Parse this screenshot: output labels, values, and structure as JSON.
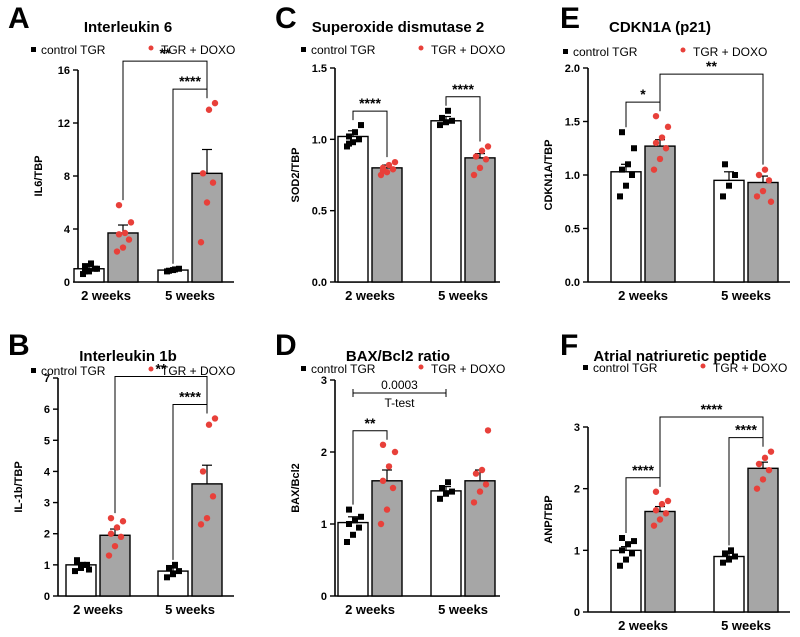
{
  "chart_data": [
    {
      "panel": "A",
      "type": "bar",
      "title": "Interleukin 6",
      "ylabel": "IL6/TBP",
      "ylim": [
        0,
        16
      ],
      "yticks": [
        0,
        4,
        8,
        12,
        16
      ],
      "tick_labels": [
        "0",
        "4",
        "8",
        "12",
        "16"
      ],
      "categories": [
        "2 weeks",
        "5 weeks"
      ],
      "legend": [
        "control TGR",
        "TGR + DOXO"
      ],
      "series": [
        {
          "name": "control TGR",
          "values": [
            1.0,
            0.9
          ],
          "errors": [
            0.15,
            0.1
          ],
          "points": [
            [
              0.6,
              0.8,
              1.0,
              1.2,
              1.4,
              1.0,
              0.8
            ],
            [
              0.8,
              0.9,
              1.0,
              0.85,
              0.95
            ]
          ]
        },
        {
          "name": "TGR + DOXO",
          "values": [
            3.7,
            8.2
          ],
          "errors": [
            0.6,
            1.8
          ],
          "points": [
            [
              2.3,
              2.6,
              3.2,
              3.6,
              3.7,
              4.5,
              5.8
            ],
            [
              3.0,
              6.0,
              7.5,
              8.2,
              13.0,
              13.5
            ]
          ]
        }
      ],
      "brackets": [
        {
          "from": [
            1,
            "control TGR"
          ],
          "to": [
            1,
            "TGR + DOXO"
          ],
          "label": "****"
        },
        {
          "from": [
            0,
            "TGR + DOXO"
          ],
          "to": [
            1,
            "TGR + DOXO"
          ],
          "label": "**"
        }
      ]
    },
    {
      "panel": "B",
      "type": "bar",
      "title": "Interleukin 1b",
      "ylabel": "IL-1b/TBP",
      "ylim": [
        0,
        7
      ],
      "yticks": [
        0,
        1,
        2,
        3,
        4,
        5,
        6,
        7
      ],
      "tick_labels": [
        "0",
        "1",
        "2",
        "3",
        "4",
        "5",
        "6",
        "7"
      ],
      "categories": [
        "2 weeks",
        "5 weeks"
      ],
      "legend": [
        "control TGR",
        "TGR + DOXO"
      ],
      "series": [
        {
          "name": "control TGR",
          "values": [
            1.0,
            0.8
          ],
          "errors": [
            0.07,
            0.1
          ],
          "points": [
            [
              0.8,
              0.9,
              1.0,
              1.1,
              1.0,
              0.85,
              1.15
            ],
            [
              0.6,
              0.7,
              0.8,
              0.9,
              1.0
            ]
          ]
        },
        {
          "name": "TGR + DOXO",
          "values": [
            1.95,
            3.6
          ],
          "errors": [
            0.2,
            0.6
          ],
          "points": [
            [
              1.3,
              1.6,
              1.9,
              2.0,
              2.2,
              2.4,
              2.5
            ],
            [
              2.3,
              2.5,
              3.2,
              4.0,
              5.5,
              5.7
            ]
          ]
        }
      ],
      "brackets": [
        {
          "from": [
            1,
            "control TGR"
          ],
          "to": [
            1,
            "TGR + DOXO"
          ],
          "label": "****"
        },
        {
          "from": [
            0,
            "TGR + DOXO"
          ],
          "to": [
            1,
            "TGR + DOXO"
          ],
          "label": "**"
        }
      ]
    },
    {
      "panel": "C",
      "type": "bar",
      "title": "Superoxide dismutase 2",
      "ylabel": "SOD2/TBP",
      "ylim": [
        0,
        1.5
      ],
      "yticks": [
        0,
        0.5,
        1.0,
        1.5
      ],
      "tick_labels": [
        "0.0",
        "0.5",
        "1.0",
        "1.5"
      ],
      "categories": [
        "2 weeks",
        "5 weeks"
      ],
      "legend": [
        "control TGR",
        "TGR + DOXO"
      ],
      "series": [
        {
          "name": "control TGR",
          "values": [
            1.02,
            1.13
          ],
          "errors": [
            0.04,
            0.03
          ],
          "points": [
            [
              0.95,
              0.98,
              1.0,
              1.02,
              1.05,
              1.1,
              0.97
            ],
            [
              1.1,
              1.12,
              1.13,
              1.15,
              1.2
            ]
          ]
        },
        {
          "name": "TGR + DOXO",
          "values": [
            0.8,
            0.87
          ],
          "errors": [
            0.02,
            0.03
          ],
          "points": [
            [
              0.75,
              0.77,
              0.79,
              0.8,
              0.82,
              0.84,
              0.78
            ],
            [
              0.75,
              0.8,
              0.86,
              0.88,
              0.92,
              0.95
            ]
          ]
        }
      ],
      "brackets": [
        {
          "from": [
            0,
            "control TGR"
          ],
          "to": [
            0,
            "TGR + DOXO"
          ],
          "label": "****"
        },
        {
          "from": [
            1,
            "control TGR"
          ],
          "to": [
            1,
            "TGR + DOXO"
          ],
          "label": "****"
        }
      ]
    },
    {
      "panel": "D",
      "type": "bar",
      "title": "BAX/Bcl2 ratio",
      "ylabel": "BAX/Bcl2",
      "ylim": [
        0,
        3
      ],
      "yticks": [
        0,
        1,
        2,
        3
      ],
      "tick_labels": [
        "0",
        "1",
        "2",
        "3"
      ],
      "categories": [
        "2 weeks",
        "5 weeks"
      ],
      "legend": [
        "control TGR",
        "TGR + DOXO"
      ],
      "series": [
        {
          "name": "control TGR",
          "values": [
            1.02,
            1.46
          ],
          "errors": [
            0.08,
            0.06
          ],
          "points": [
            [
              0.75,
              0.85,
              0.95,
              1.0,
              1.05,
              1.1,
              1.2
            ],
            [
              1.35,
              1.42,
              1.45,
              1.5,
              1.58
            ]
          ]
        },
        {
          "name": "TGR + DOXO",
          "values": [
            1.6,
            1.6
          ],
          "errors": [
            0.15,
            0.15
          ],
          "points": [
            [
              1.0,
              1.2,
              1.5,
              1.6,
              1.8,
              2.0,
              2.1
            ],
            [
              1.3,
              1.45,
              1.55,
              1.7,
              1.75,
              2.3
            ]
          ]
        }
      ],
      "brackets": [
        {
          "from": [
            0,
            "control TGR"
          ],
          "to": [
            0,
            "TGR + DOXO"
          ],
          "label": "**"
        }
      ],
      "annotation": {
        "value_text": "0.0003",
        "test_text": "T-test"
      }
    },
    {
      "panel": "E",
      "type": "bar",
      "title": "CDKN1A (p21)",
      "ylabel": "CDKN1A/TBP",
      "ylim": [
        0,
        2.0
      ],
      "yticks": [
        0,
        0.5,
        1.0,
        1.5,
        2.0
      ],
      "tick_labels": [
        "0.0",
        "0.5",
        "1.0",
        "1.5",
        "2.0"
      ],
      "categories": [
        "2 weeks",
        "5 weeks"
      ],
      "legend": [
        "control TGR",
        "TGR + DOXO"
      ],
      "series": [
        {
          "name": "control TGR",
          "values": [
            1.03,
            0.95
          ],
          "errors": [
            0.07,
            0.08
          ],
          "points": [
            [
              0.8,
              0.9,
              1.0,
              1.05,
              1.1,
              1.25,
              1.4
            ],
            [
              0.8,
              0.9,
              1.0,
              1.1
            ]
          ]
        },
        {
          "name": "TGR + DOXO",
          "values": [
            1.27,
            0.93
          ],
          "errors": [
            0.06,
            0.06
          ],
          "points": [
            [
              1.05,
              1.15,
              1.25,
              1.3,
              1.35,
              1.45,
              1.55
            ],
            [
              0.8,
              0.85,
              0.95,
              1.0,
              1.05,
              0.75
            ]
          ]
        }
      ],
      "brackets": [
        {
          "from": [
            0,
            "control TGR"
          ],
          "to": [
            0,
            "TGR + DOXO"
          ],
          "label": "*"
        },
        {
          "from": [
            0,
            "TGR + DOXO"
          ],
          "to": [
            1,
            "TGR + DOXO"
          ],
          "label": "**"
        }
      ]
    },
    {
      "panel": "F",
      "type": "bar",
      "title": "Atrial natriuretic peptide",
      "ylabel": "ANP/TBP",
      "ylim": [
        0,
        3
      ],
      "yticks": [
        0,
        1,
        2,
        3
      ],
      "tick_labels": [
        "0",
        "1",
        "2",
        "3"
      ],
      "categories": [
        "2 weeks",
        "5 weeks"
      ],
      "legend": [
        "control TGR",
        "TGR + DOXO"
      ],
      "series": [
        {
          "name": "control TGR",
          "values": [
            1.0,
            0.9
          ],
          "errors": [
            0.06,
            0.05
          ],
          "points": [
            [
              0.75,
              0.85,
              0.95,
              1.0,
              1.1,
              1.15,
              1.2
            ],
            [
              0.8,
              0.85,
              0.9,
              0.95,
              1.0
            ]
          ]
        },
        {
          "name": "TGR + DOXO",
          "values": [
            1.63,
            2.33
          ],
          "errors": [
            0.08,
            0.1
          ],
          "points": [
            [
              1.4,
              1.5,
              1.6,
              1.65,
              1.75,
              1.8,
              1.95
            ],
            [
              2.0,
              2.15,
              2.3,
              2.4,
              2.5,
              2.6
            ]
          ]
        }
      ],
      "brackets": [
        {
          "from": [
            0,
            "control TGR"
          ],
          "to": [
            0,
            "TGR + DOXO"
          ],
          "label": "****"
        },
        {
          "from": [
            1,
            "control TGR"
          ],
          "to": [
            1,
            "TGR + DOXO"
          ],
          "label": "****"
        },
        {
          "from": [
            0,
            "TGR + DOXO"
          ],
          "to": [
            1,
            "TGR + DOXO"
          ],
          "label": "****"
        }
      ]
    }
  ],
  "colors": {
    "control_bar": "#ffffff",
    "doxo_bar": "#a6a6a6",
    "control_marker": "#000000",
    "doxo_marker": "#e8403a",
    "axis": "#000000"
  }
}
